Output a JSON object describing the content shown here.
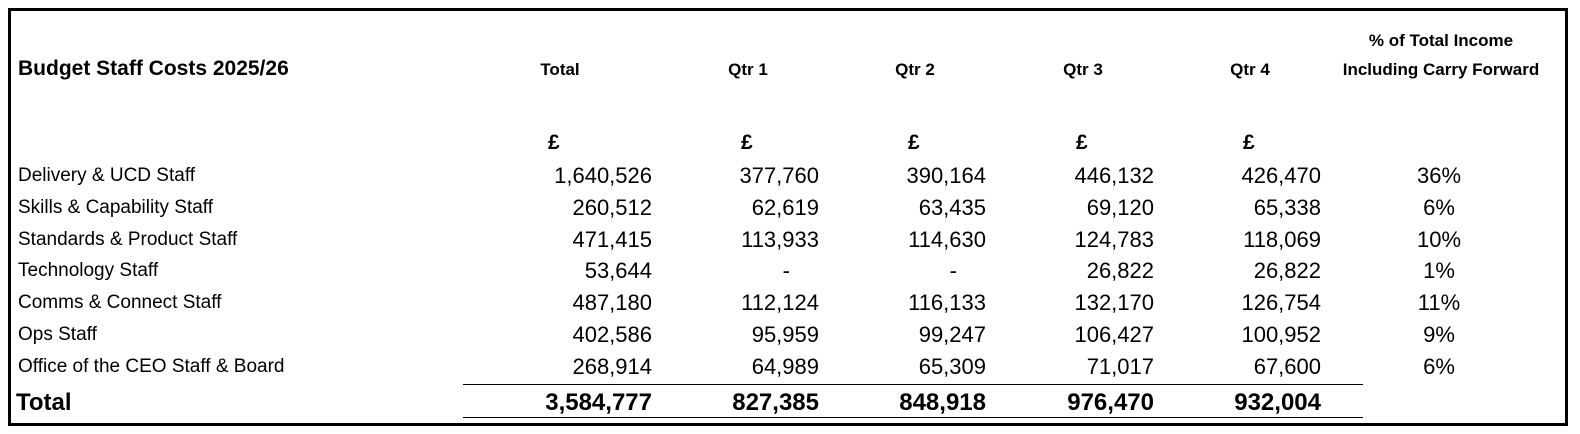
{
  "title": "Budget Staff Costs 2025/26",
  "columns": [
    "Total",
    "Qtr 1",
    "Qtr 2",
    "Qtr 3",
    "Qtr 4"
  ],
  "pct_header": "% of Total Income Including Carry Forward",
  "currency_symbol": "£",
  "rows": [
    {
      "label": "Delivery & UCD Staff",
      "values": [
        "1,640,526",
        "377,760",
        "390,164",
        "446,132",
        "426,470"
      ],
      "pct": "36%"
    },
    {
      "label": "Skills & Capability Staff",
      "values": [
        "260,512",
        "62,619",
        "63,435",
        "69,120",
        "65,338"
      ],
      "pct": "6%"
    },
    {
      "label": "Standards  & Product Staff",
      "values": [
        "471,415",
        "113,933",
        "114,630",
        "124,783",
        "118,069"
      ],
      "pct": "10%"
    },
    {
      "label": "Technology Staff",
      "values": [
        "53,644",
        "-",
        "-",
        "26,822",
        "26,822"
      ],
      "pct": "1%"
    },
    {
      "label": "Comms & Connect Staff",
      "values": [
        "487,180",
        "112,124",
        "116,133",
        "132,170",
        "126,754"
      ],
      "pct": "11%"
    },
    {
      "label": "Ops Staff",
      "values": [
        "402,586",
        "95,959",
        "99,247",
        "106,427",
        "100,952"
      ],
      "pct": "9%"
    },
    {
      "label": "Office of the CEO Staff & Board",
      "values": [
        "268,914",
        "64,989",
        "65,309",
        "71,017",
        "67,600"
      ],
      "pct": "6%"
    }
  ],
  "total": {
    "label": "Total",
    "values": [
      "3,584,777",
      "827,385",
      "848,918",
      "976,470",
      "932,004"
    ]
  }
}
